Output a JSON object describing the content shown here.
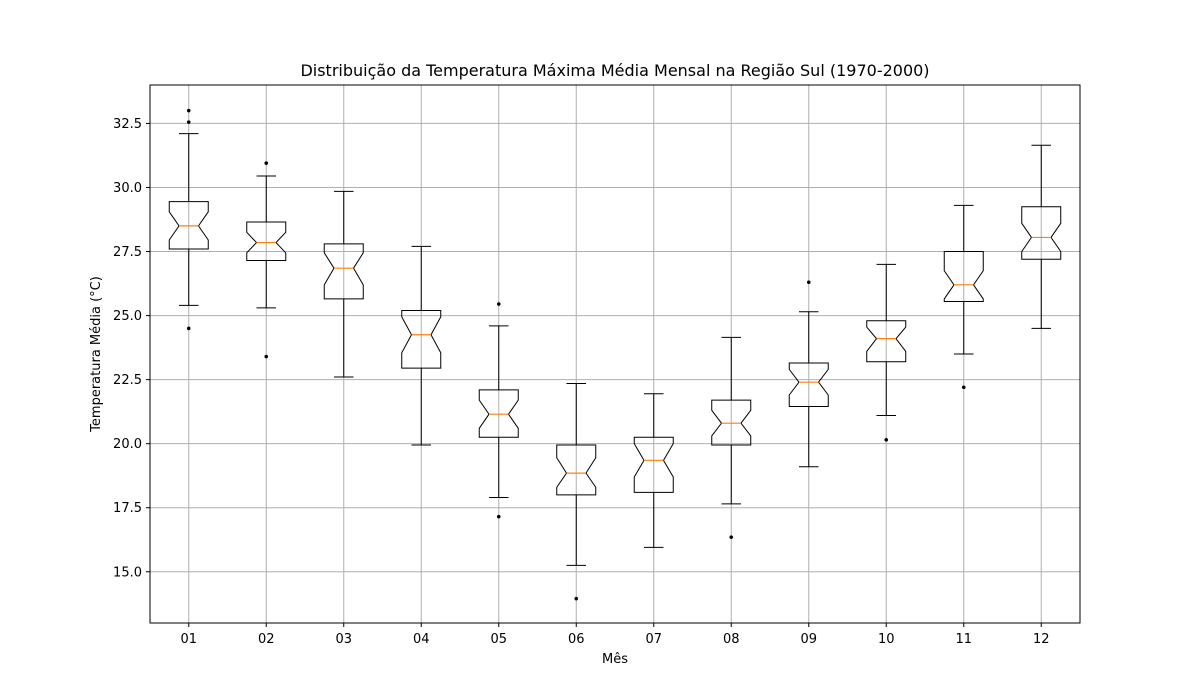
{
  "chart_data": {
    "type": "box",
    "title": "Distribuição da Temperatura Máxima Média Mensal na Região Sul (1970-2000)",
    "xlabel": "Mês",
    "ylabel": "Temperatura Média (°C)",
    "categories": [
      "01",
      "02",
      "03",
      "04",
      "05",
      "06",
      "07",
      "08",
      "09",
      "10",
      "11",
      "12"
    ],
    "ylim": [
      13.0,
      34.0
    ],
    "yticks": [
      15.0,
      17.5,
      20.0,
      22.5,
      25.0,
      27.5,
      30.0,
      32.5
    ],
    "ytick_labels": [
      "15.0",
      "17.5",
      "20.0",
      "22.5",
      "25.0",
      "27.5",
      "30.0",
      "32.5"
    ],
    "grid": true,
    "notched": true,
    "median_color": "#ff7f0e",
    "box_color": "#000000",
    "grid_color": "#b0b0b0",
    "boxes": [
      {
        "category": "01",
        "whisker_low": 25.4,
        "q1": 27.6,
        "median": 28.5,
        "q3": 29.45,
        "whisker_high": 32.1,
        "notch_low": 27.95,
        "notch_high": 29.05,
        "outliers": [
          24.5,
          32.55,
          33.0
        ]
      },
      {
        "category": "02",
        "whisker_low": 25.3,
        "q1": 27.15,
        "median": 27.85,
        "q3": 28.65,
        "whisker_high": 30.45,
        "notch_low": 27.45,
        "notch_high": 28.25,
        "outliers": [
          23.4,
          30.95
        ]
      },
      {
        "category": "03",
        "whisker_low": 22.6,
        "q1": 25.65,
        "median": 26.85,
        "q3": 27.8,
        "whisker_high": 29.85,
        "notch_low": 26.2,
        "notch_high": 27.45,
        "outliers": []
      },
      {
        "category": "04",
        "whisker_low": 19.95,
        "q1": 22.95,
        "median": 24.25,
        "q3": 25.2,
        "whisker_high": 27.7,
        "notch_low": 23.55,
        "notch_high": 24.95,
        "outliers": []
      },
      {
        "category": "05",
        "whisker_low": 17.9,
        "q1": 20.25,
        "median": 21.15,
        "q3": 22.1,
        "whisker_high": 24.6,
        "notch_low": 20.6,
        "notch_high": 21.7,
        "outliers": [
          17.15,
          25.45
        ]
      },
      {
        "category": "06",
        "whisker_low": 15.25,
        "q1": 18.0,
        "median": 18.85,
        "q3": 19.95,
        "whisker_high": 22.35,
        "notch_low": 18.3,
        "notch_high": 19.45,
        "outliers": [
          13.95
        ]
      },
      {
        "category": "07",
        "whisker_low": 15.95,
        "q1": 18.1,
        "median": 19.35,
        "q3": 20.25,
        "whisker_high": 21.95,
        "notch_low": 18.7,
        "notch_high": 20.0,
        "outliers": []
      },
      {
        "category": "08",
        "whisker_low": 17.65,
        "q1": 19.95,
        "median": 20.8,
        "q3": 21.7,
        "whisker_high": 24.15,
        "notch_low": 20.3,
        "notch_high": 21.3,
        "outliers": [
          16.35
        ]
      },
      {
        "category": "09",
        "whisker_low": 19.1,
        "q1": 21.45,
        "median": 22.4,
        "q3": 23.15,
        "whisker_high": 25.15,
        "notch_low": 21.9,
        "notch_high": 22.9,
        "outliers": [
          26.3
        ]
      },
      {
        "category": "10",
        "whisker_low": 21.1,
        "q1": 23.2,
        "median": 24.1,
        "q3": 24.8,
        "whisker_high": 27.0,
        "notch_low": 23.6,
        "notch_high": 24.55,
        "outliers": [
          20.15
        ]
      },
      {
        "category": "11",
        "whisker_low": 23.5,
        "q1": 25.55,
        "median": 26.2,
        "q3": 27.5,
        "whisker_high": 29.3,
        "notch_low": 25.65,
        "notch_high": 26.75,
        "outliers": [
          22.2
        ]
      },
      {
        "category": "12",
        "whisker_low": 24.5,
        "q1": 27.2,
        "median": 28.05,
        "q3": 29.25,
        "whisker_high": 31.65,
        "notch_low": 27.5,
        "notch_high": 28.6,
        "outliers": []
      }
    ]
  }
}
